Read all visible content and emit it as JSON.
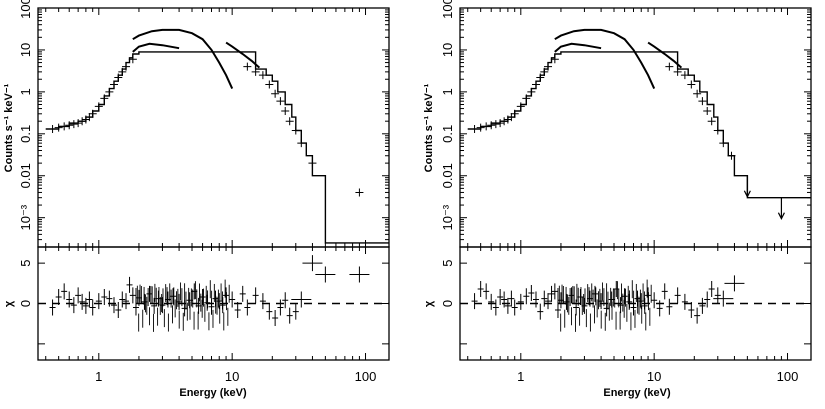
{
  "figure": {
    "x_label": "Energy (keV)",
    "y_label_top": "Counts s⁻¹ keV⁻¹",
    "y_label_bottom": "χ"
  },
  "chart_data": [
    {
      "type": "line",
      "panel": "left",
      "x_scale": "log",
      "xlim": [
        0.35,
        150
      ],
      "x_ticks": [
        1,
        10,
        100
      ],
      "x_tick_labels": [
        "1",
        "10",
        "100"
      ],
      "top": {
        "y_scale": "log",
        "ylim": [
          0.0002,
          100
        ],
        "y_ticks": [
          100,
          10,
          1,
          0.1,
          0.01,
          0.001
        ],
        "y_tick_labels": [
          "100",
          "10",
          "1",
          "0.1",
          "0.01",
          "10⁻³"
        ],
        "series": [
          {
            "style": "curve",
            "x": [
              1.8,
              2.0,
              2.4,
              3.0,
              4.0
            ],
            "y": [
              9,
              12,
              14,
              13,
              11
            ]
          },
          {
            "style": "curve",
            "x": [
              1.8,
              2.0,
              2.5,
              3.0,
              4.0,
              5.0,
              6.0,
              7.0,
              8.0,
              9.0,
              10.0
            ],
            "y": [
              18,
              22,
              28,
              30,
              30,
              25,
              18,
              10,
              5,
              2.5,
              1.2
            ]
          },
          {
            "style": "curve",
            "x": [
              9.0,
              10.0,
              12.0,
              14.0,
              16.0
            ],
            "y": [
              15,
              12,
              8,
              5.5,
              3.8
            ]
          },
          {
            "style": "step",
            "x": [
              0.4,
              0.5,
              0.6,
              0.7,
              0.8,
              0.9,
              1.0,
              1.1,
              1.2,
              1.3,
              1.4,
              1.5,
              1.6,
              1.7,
              1.8,
              2.0,
              15,
              18,
              20,
              22,
              25,
              28,
              30,
              33,
              36,
              40,
              50,
              150
            ],
            "y": [
              0.13,
              0.15,
              0.18,
              0.2,
              0.25,
              0.35,
              0.5,
              0.8,
              1.2,
              1.8,
              2.5,
              3.5,
              5,
              6.5,
              8,
              9,
              3.5,
              2.5,
              1.8,
              1.0,
              0.5,
              0.25,
              0.12,
              0.06,
              0.03,
              0.01,
              0.00025,
              0.00025
            ]
          },
          {
            "style": "points",
            "x": [
              0.45,
              0.5,
              0.55,
              0.6,
              0.65,
              0.7,
              0.75,
              0.8,
              0.85,
              0.9,
              1.0,
              1.1,
              1.2,
              1.3,
              1.4,
              1.5,
              1.6,
              1.8,
              13,
              15,
              17,
              19,
              21,
              23,
              25,
              27,
              30,
              33,
              40,
              90
            ],
            "y": [
              0.13,
              0.14,
              0.15,
              0.16,
              0.17,
              0.18,
              0.2,
              0.22,
              0.25,
              0.3,
              0.45,
              0.7,
              1.0,
              1.5,
              2.2,
              3.0,
              4.0,
              6.0,
              4.0,
              3.0,
              2.5,
              1.5,
              0.9,
              0.6,
              0.35,
              0.2,
              0.12,
              0.06,
              0.02,
              0.004
            ]
          }
        ]
      },
      "bottom": {
        "ylim": [
          -7,
          7
        ],
        "y_ticks": [
          5,
          0
        ],
        "y_tick_labels": [
          "5",
          "0"
        ],
        "zero_line": "dashed",
        "residuals_x": [
          0.45,
          0.5,
          0.55,
          0.6,
          0.65,
          0.7,
          0.75,
          0.8,
          0.85,
          0.9,
          1.0,
          1.1,
          1.2,
          1.3,
          1.4,
          1.5,
          1.6,
          1.7,
          1.8,
          1.9,
          2.0,
          2.2,
          2.4,
          2.6,
          2.8,
          3.0,
          3.3,
          3.6,
          4.0,
          4.4,
          4.8,
          5.2,
          5.6,
          6.0,
          6.5,
          7.0,
          7.5,
          8.0,
          8.5,
          9.0,
          10.0,
          11,
          12,
          13,
          15,
          17,
          19,
          21,
          23,
          25,
          27,
          30,
          33,
          40,
          50,
          90
        ],
        "residuals": [
          -0.5,
          0.8,
          1.5,
          0.5,
          -0.2,
          1.0,
          0.2,
          -0.3,
          0.5,
          -0.5,
          0.3,
          0.8,
          0.6,
          -0.2,
          -0.8,
          0.5,
          0.3,
          2.3,
          1.0,
          -0.5,
          0.7,
          0.2,
          1.2,
          -0.3,
          0.6,
          -0.2,
          0.5,
          0.9,
          0.2,
          -0.6,
          0.4,
          1.5,
          -0.3,
          0.8,
          0.1,
          -0.4,
          0.6,
          0.3,
          -0.2,
          1.0,
          0.5,
          -0.8,
          1.2,
          -0.5,
          1.0,
          0.3,
          -1.0,
          -1.8,
          -0.5,
          0.4,
          -1.5,
          -1.0,
          0.5,
          5.0,
          3.6,
          3.6
        ]
      }
    },
    {
      "type": "line",
      "panel": "right",
      "x_scale": "log",
      "xlim": [
        0.35,
        150
      ],
      "x_ticks": [
        1,
        10,
        100
      ],
      "x_tick_labels": [
        "1",
        "10",
        "100"
      ],
      "top": {
        "y_scale": "log",
        "ylim": [
          0.0002,
          100
        ],
        "y_ticks": [
          100,
          10,
          1,
          0.1,
          0.01,
          0.001
        ],
        "y_tick_labels": [
          "100",
          "10",
          "1",
          "0.1",
          "0.01",
          "10⁻³"
        ],
        "series": [
          {
            "style": "curve",
            "x": [
              1.8,
              2.0,
              2.4,
              3.0,
              4.0
            ],
            "y": [
              9,
              12,
              14,
              13,
              11
            ]
          },
          {
            "style": "curve",
            "x": [
              1.8,
              2.0,
              2.5,
              3.0,
              4.0,
              5.0,
              6.0,
              7.0,
              8.0,
              9.0,
              10.0
            ],
            "y": [
              18,
              22,
              28,
              30,
              30,
              25,
              18,
              10,
              5,
              2.5,
              1.2
            ]
          },
          {
            "style": "curve",
            "x": [
              9.0,
              10.0,
              12.0,
              14.0,
              16.0
            ],
            "y": [
              15,
              12,
              8,
              5.5,
              3.8
            ]
          },
          {
            "style": "step",
            "x": [
              0.4,
              0.5,
              0.6,
              0.7,
              0.8,
              0.9,
              1.0,
              1.1,
              1.2,
              1.3,
              1.4,
              1.5,
              1.6,
              1.7,
              1.8,
              2.0,
              15,
              18,
              20,
              22,
              25,
              28,
              30,
              33,
              36,
              40,
              50,
              150
            ],
            "y": [
              0.13,
              0.15,
              0.18,
              0.2,
              0.25,
              0.35,
              0.5,
              0.8,
              1.2,
              1.8,
              2.5,
              3.5,
              5,
              6.5,
              8,
              9,
              3.5,
              2.5,
              1.8,
              1.0,
              0.5,
              0.25,
              0.12,
              0.06,
              0.03,
              0.01,
              0.003,
              0.003
            ]
          },
          {
            "style": "points",
            "x": [
              0.45,
              0.5,
              0.55,
              0.6,
              0.65,
              0.7,
              0.75,
              0.8,
              0.85,
              0.9,
              1.0,
              1.1,
              1.2,
              1.3,
              1.4,
              1.5,
              1.6,
              1.8,
              13,
              15,
              17,
              19,
              21,
              23,
              25,
              27,
              30,
              33,
              38
            ],
            "y": [
              0.13,
              0.14,
              0.15,
              0.16,
              0.17,
              0.18,
              0.2,
              0.22,
              0.25,
              0.3,
              0.45,
              0.7,
              1.0,
              1.5,
              2.2,
              3.0,
              4.0,
              6.0,
              4.0,
              3.0,
              2.5,
              1.5,
              0.9,
              0.6,
              0.35,
              0.2,
              0.12,
              0.06,
              0.03
            ]
          },
          {
            "style": "upper_limits",
            "x": [
              50,
              90
            ],
            "y": [
              0.01,
              0.003
            ]
          }
        ]
      },
      "bottom": {
        "ylim": [
          -7,
          7
        ],
        "y_ticks": [
          5,
          0
        ],
        "y_tick_labels": [
          "5",
          "0"
        ],
        "zero_line": "dashed",
        "residuals_x": [
          0.45,
          0.5,
          0.55,
          0.6,
          0.65,
          0.7,
          0.75,
          0.8,
          0.85,
          0.9,
          1.0,
          1.1,
          1.2,
          1.3,
          1.4,
          1.5,
          1.6,
          1.7,
          1.8,
          1.9,
          2.0,
          2.2,
          2.4,
          2.6,
          2.8,
          3.0,
          3.3,
          3.6,
          4.0,
          4.4,
          4.8,
          5.2,
          5.6,
          6.0,
          6.5,
          7.0,
          7.5,
          8.0,
          8.5,
          9.0,
          10.0,
          11,
          12,
          13,
          15,
          17,
          19,
          21,
          23,
          25,
          27,
          30,
          33,
          40
        ],
        "residuals": [
          0.3,
          1.8,
          1.5,
          0.2,
          -0.5,
          0.8,
          0.5,
          -0.3,
          0.6,
          -0.5,
          0.2,
          0.9,
          1.3,
          0.5,
          -1.0,
          0.6,
          0.3,
          1.2,
          1.5,
          -0.8,
          0.4,
          0.2,
          1.0,
          -0.5,
          0.8,
          -0.3,
          0.6,
          1.2,
          0.3,
          -0.6,
          0.5,
          1.8,
          -0.2,
          0.9,
          0.2,
          -0.5,
          0.6,
          0.3,
          -0.3,
          1.0,
          0.4,
          -0.6,
          1.5,
          -0.4,
          1.0,
          0.2,
          -0.8,
          -1.5,
          -0.3,
          0.5,
          1.8,
          1.0,
          0.6,
          2.5
        ]
      }
    }
  ]
}
